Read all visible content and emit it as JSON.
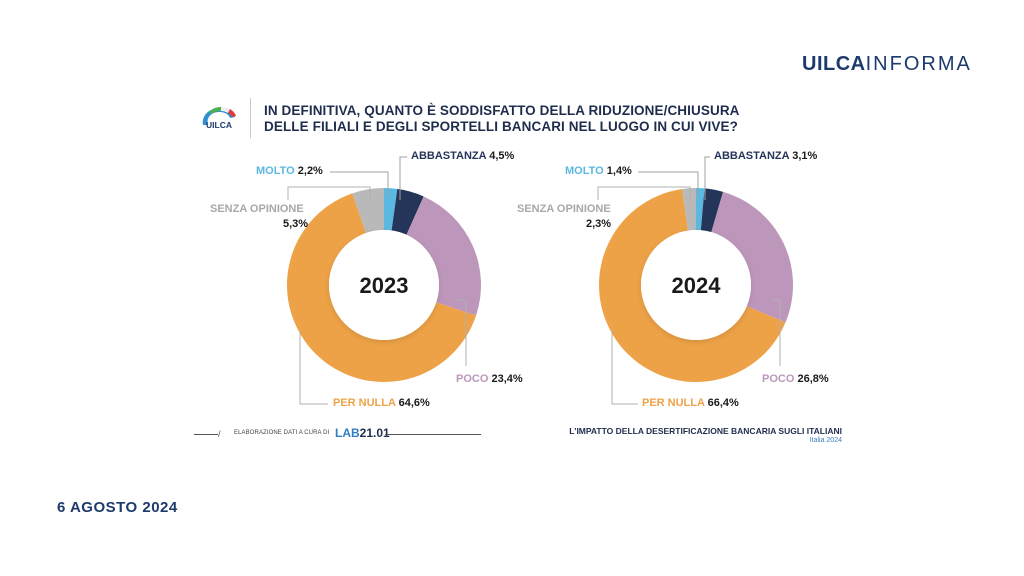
{
  "header": {
    "brand_bold": "UILCA",
    "brand_light": "INFORMA",
    "logo_text": "UILCA"
  },
  "question": {
    "line1": "IN DEFINITIVA, QUANTO È SODDISFATTO DELLA RIDUZIONE/CHIUSURA",
    "line2": "DELLE FILIALI E DEGLI SPORTELLI BANCARI NEL LUOGO IN CUI VIVE?"
  },
  "colors": {
    "molto": "#5bb8e0",
    "abbastanza": "#25355a",
    "poco": "#bd97bb",
    "per_nulla": "#eea247",
    "senza_opinione": "#b9b9b9",
    "brand": "#1c3a6b"
  },
  "chart_data": [
    {
      "type": "pie",
      "subtype": "donut",
      "title": "2023",
      "categories": [
        "MOLTO",
        "ABBASTANZA",
        "POCO",
        "PER NULLA",
        "SENZA OPINIONE"
      ],
      "values": [
        2.2,
        4.5,
        23.4,
        64.6,
        5.3
      ],
      "value_labels": [
        "2,2%",
        "4,5%",
        "23,4%",
        "64,6%",
        "5,3%"
      ],
      "unit": "%",
      "start": "top",
      "direction": "clockwise"
    },
    {
      "type": "pie",
      "subtype": "donut",
      "title": "2024",
      "categories": [
        "MOLTO",
        "ABBASTANZA",
        "POCO",
        "PER NULLA",
        "SENZA OPINIONE"
      ],
      "values": [
        1.4,
        3.1,
        26.8,
        66.4,
        2.3
      ],
      "value_labels": [
        "1,4%",
        "3,1%",
        "26,8%",
        "66,4%",
        "2,3%"
      ],
      "unit": "%",
      "start": "top",
      "direction": "clockwise"
    }
  ],
  "footer": {
    "credit": "ELABORAZIONE DATI A CURA DI",
    "lab_a": "LAB",
    "lab_b": "21.01",
    "survey_title": "L'IMPATTO DELLA DESERTIFICAZIONE BANCARIA SUGLI ITALIANI",
    "survey_sub": "Italia 2024"
  },
  "date": "6 AGOSTO 2024"
}
